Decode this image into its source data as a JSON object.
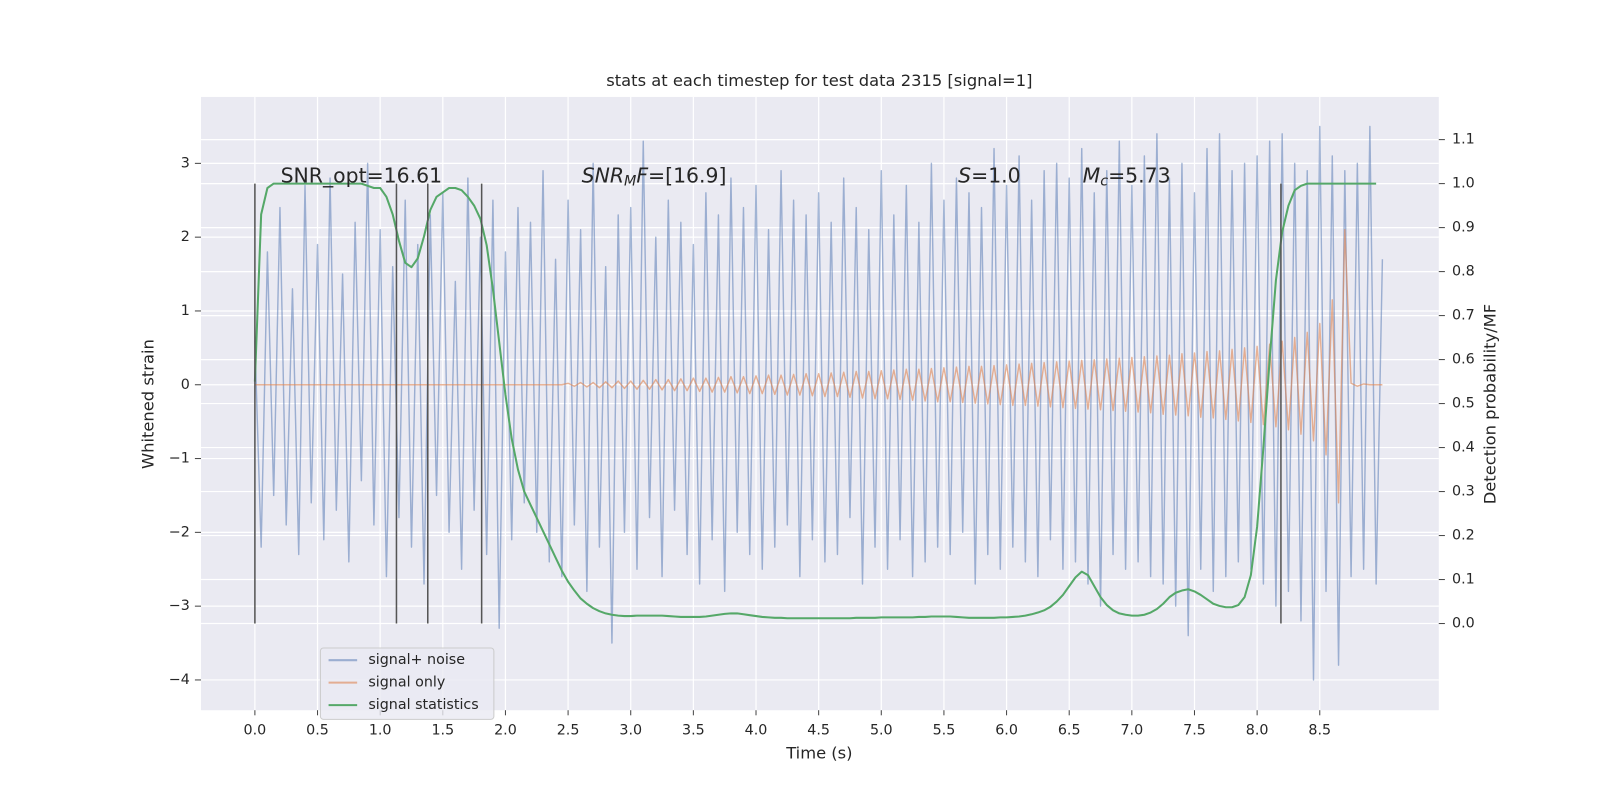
{
  "chart_data": {
    "type": "line",
    "title": "stats at each timestep for test data 2315 [signal=1]",
    "xlabel": "Time (s)",
    "ylabel": "Whitened strain",
    "y2label": "Detection probability/MF",
    "xlim": [
      -0.43,
      9.45
    ],
    "ylim": [
      -4.41,
      3.9
    ],
    "y2lim": [
      -0.197,
      1.197
    ],
    "xticks": [
      {
        "value": 0,
        "label": "0.0"
      },
      0.5,
      {
        "value": 1,
        "label": "1.0"
      },
      1.5,
      {
        "value": 2,
        "label": "2.0"
      },
      2.5,
      {
        "value": 3,
        "label": "3.0"
      },
      3.5,
      {
        "value": 4,
        "label": "4.0"
      },
      4.5,
      {
        "value": 5,
        "label": "5.0"
      },
      5.5,
      {
        "value": 6,
        "label": "6.0"
      },
      6.5,
      {
        "value": 7,
        "label": "7.0"
      },
      7.5,
      {
        "value": 8,
        "label": "8.0"
      },
      8.5
    ],
    "yticks": [
      {
        "value": -4,
        "label": "−4"
      },
      {
        "value": -3,
        "label": "−3"
      },
      {
        "value": -2,
        "label": "−2"
      },
      {
        "value": -1,
        "label": "−1"
      },
      0,
      1,
      2,
      3
    ],
    "y2ticks": [
      {
        "value": 0,
        "label": "0.0"
      },
      0.1,
      0.2,
      0.3,
      0.4,
      0.5,
      0.6,
      0.7,
      0.8,
      0.9,
      {
        "value": 1,
        "label": "1.0"
      },
      1.1
    ],
    "grid": true,
    "legend": "lower left",
    "x": [
      0,
      0.05,
      0.1,
      0.15,
      0.2,
      0.25,
      0.3,
      0.35,
      0.4,
      0.45,
      0.5,
      0.55,
      0.6,
      0.65,
      0.7,
      0.75,
      0.8,
      0.85,
      0.9,
      0.95,
      1,
      1.05,
      1.1,
      1.15,
      1.2,
      1.25,
      1.3,
      1.35,
      1.4,
      1.45,
      1.5,
      1.55,
      1.6,
      1.65,
      1.7,
      1.75,
      1.8,
      1.85,
      1.9,
      1.95,
      2,
      2.05,
      2.1,
      2.15,
      2.2,
      2.25,
      2.3,
      2.35,
      2.4,
      2.45,
      2.5,
      2.55,
      2.6,
      2.65,
      2.7,
      2.75,
      2.8,
      2.85,
      2.9,
      2.95,
      3,
      3.05,
      3.1,
      3.15,
      3.2,
      3.25,
      3.3,
      3.35,
      3.4,
      3.45,
      3.5,
      3.55,
      3.6,
      3.65,
      3.7,
      3.75,
      3.8,
      3.85,
      3.9,
      3.95,
      4,
      4.05,
      4.1,
      4.15,
      4.2,
      4.25,
      4.3,
      4.35,
      4.4,
      4.45,
      4.5,
      4.55,
      4.6,
      4.65,
      4.7,
      4.75,
      4.8,
      4.85,
      4.9,
      4.95,
      5,
      5.05,
      5.1,
      5.15,
      5.2,
      5.25,
      5.3,
      5.35,
      5.4,
      5.45,
      5.5,
      5.55,
      5.6,
      5.65,
      5.7,
      5.75,
      5.8,
      5.85,
      5.9,
      5.95,
      6,
      6.05,
      6.1,
      6.15,
      6.2,
      6.25,
      6.3,
      6.35,
      6.4,
      6.45,
      6.5,
      6.55,
      6.6,
      6.65,
      6.7,
      6.75,
      6.8,
      6.85,
      6.9,
      6.95,
      7,
      7.05,
      7.1,
      7.15,
      7.2,
      7.25,
      7.3,
      7.35,
      7.4,
      7.45,
      7.5,
      7.55,
      7.6,
      7.65,
      7.7,
      7.75,
      7.8,
      7.85,
      7.9,
      7.95,
      8,
      8.05,
      8.1,
      8.15,
      8.2,
      8.25,
      8.3,
      8.35,
      8.4,
      8.45,
      8.5,
      8.55,
      8.6,
      8.65,
      8.7,
      8.75,
      8.8,
      8.85,
      8.9,
      8.95,
      9
    ],
    "series": [
      {
        "name": "signal+ noise",
        "color": "#4c72b0",
        "opacity": 0.5,
        "axis": "y",
        "values": [
          0.6,
          -2.2,
          1.8,
          -1.5,
          2.4,
          -1.9,
          1.3,
          -2.3,
          2.7,
          -1.6,
          1.9,
          -2.1,
          2.8,
          -1.7,
          1.5,
          -2.4,
          2.2,
          -1.3,
          3.0,
          -1.9,
          2.1,
          -2.6,
          1.6,
          -1.8,
          2.5,
          -2.2,
          1.9,
          -2.7,
          2.3,
          -1.5,
          2.6,
          -2.0,
          1.4,
          -2.5,
          2.8,
          -1.7,
          2.0,
          -2.3,
          2.5,
          -3.3,
          1.8,
          -2.1,
          2.4,
          -1.6,
          2.2,
          -2.0,
          2.9,
          -2.4,
          1.7,
          -2.6,
          2.5,
          -1.9,
          2.1,
          -2.8,
          3.0,
          -2.2,
          1.6,
          -3.5,
          2.3,
          -2.0,
          2.4,
          -2.5,
          3.3,
          -1.8,
          2.0,
          -2.6,
          2.5,
          -1.7,
          2.2,
          -2.3,
          1.9,
          -2.7,
          2.6,
          -2.1,
          2.3,
          -2.8,
          2.8,
          -2.0,
          2.4,
          -2.3,
          2.7,
          -2.5,
          2.1,
          -2.2,
          2.9,
          -1.9,
          2.5,
          -2.6,
          2.3,
          -2.1,
          2.6,
          -2.4,
          2.2,
          -2.3,
          2.8,
          -1.8,
          2.4,
          -2.7,
          2.1,
          -2.2,
          2.9,
          -2.5,
          2.3,
          -2.1,
          2.7,
          -2.6,
          2.2,
          -2.4,
          3.0,
          -2.2,
          2.5,
          -2.3,
          2.8,
          -2.0,
          2.6,
          -2.7,
          2.4,
          -2.3,
          3.2,
          -2.5,
          2.7,
          -2.2,
          3.1,
          -2.4,
          2.5,
          -2.6,
          2.9,
          -2.1,
          3.0,
          -2.5,
          2.8,
          -2.4,
          3.2,
          -2.7,
          2.6,
          -3.0,
          2.9,
          -2.3,
          3.3,
          -2.5,
          2.7,
          -2.4,
          3.1,
          -2.6,
          3.4,
          -2.7,
          2.8,
          -3.0,
          3.0,
          -3.4,
          2.6,
          -2.5,
          3.2,
          -2.8,
          3.4,
          -2.6,
          2.9,
          -2.4,
          3.0,
          -2.5,
          3.1,
          -2.7,
          3.3,
          -3.0,
          3.4,
          -2.8,
          3.0,
          -3.2,
          2.9,
          -4.0,
          3.5,
          -2.8,
          3.1,
          -3.8,
          2.9,
          -2.6,
          3.0,
          -2.5,
          3.5,
          -2.7,
          1.7
        ]
      },
      {
        "name": "signal only",
        "color": "#dd8452",
        "opacity": 0.6,
        "axis": "y",
        "values": [
          0,
          0,
          0,
          0,
          0,
          0,
          0,
          0,
          0,
          0,
          0,
          0,
          0,
          0,
          0,
          0,
          0,
          0,
          0,
          0,
          0,
          0,
          0,
          0,
          0,
          0,
          0,
          0,
          0,
          0,
          0,
          0,
          0,
          0,
          0,
          0,
          0,
          0,
          0,
          0,
          0,
          0,
          0,
          0,
          0,
          0,
          0,
          0,
          0,
          0,
          0.02,
          -0.02,
          0.03,
          -0.03,
          0.03,
          -0.04,
          0.04,
          -0.04,
          0.05,
          -0.05,
          0.05,
          -0.06,
          0.06,
          -0.06,
          0.07,
          -0.07,
          0.07,
          -0.08,
          0.08,
          -0.08,
          0.09,
          -0.09,
          0.09,
          -0.1,
          0.1,
          -0.1,
          0.11,
          -0.11,
          0.11,
          -0.12,
          0.12,
          -0.12,
          0.13,
          -0.13,
          0.13,
          -0.14,
          0.14,
          -0.14,
          0.15,
          -0.15,
          0.15,
          -0.16,
          0.16,
          -0.16,
          0.17,
          -0.17,
          0.18,
          -0.18,
          0.18,
          -0.19,
          0.19,
          -0.19,
          0.2,
          -0.2,
          0.21,
          -0.21,
          0.21,
          -0.22,
          0.22,
          -0.23,
          0.23,
          -0.23,
          0.24,
          -0.24,
          0.25,
          -0.25,
          0.25,
          -0.26,
          0.26,
          -0.27,
          0.27,
          -0.28,
          0.28,
          -0.28,
          0.29,
          -0.29,
          0.3,
          -0.3,
          0.31,
          -0.31,
          0.32,
          -0.32,
          0.33,
          -0.33,
          0.34,
          -0.34,
          0.35,
          -0.35,
          0.36,
          -0.36,
          0.37,
          -0.37,
          0.38,
          -0.38,
          0.39,
          -0.4,
          0.4,
          -0.41,
          0.42,
          -0.42,
          0.43,
          -0.44,
          0.45,
          -0.45,
          0.46,
          -0.47,
          0.48,
          -0.49,
          0.5,
          -0.51,
          0.52,
          -0.54,
          0.55,
          -0.57,
          0.59,
          -0.61,
          0.64,
          -0.67,
          0.71,
          -0.76,
          0.83,
          -0.95,
          1.15,
          -1.6,
          2.1,
          0.02,
          -0.02,
          0.01,
          0,
          0,
          0
        ]
      },
      {
        "name": "signal statistics",
        "color": "#55a868",
        "opacity": 1,
        "axis": "y2",
        "values": [
          0.55,
          0.93,
          0.99,
          1.0,
          1.0,
          1.0,
          1.0,
          1.0,
          1.0,
          1.0,
          1.0,
          1.0,
          1.0,
          1.0,
          1.0,
          1.0,
          1.0,
          1.0,
          0.995,
          0.99,
          0.99,
          0.97,
          0.93,
          0.87,
          0.82,
          0.81,
          0.83,
          0.88,
          0.94,
          0.97,
          0.98,
          0.99,
          0.99,
          0.985,
          0.97,
          0.95,
          0.92,
          0.86,
          0.76,
          0.64,
          0.52,
          0.42,
          0.35,
          0.3,
          0.27,
          0.24,
          0.21,
          0.18,
          0.15,
          0.12,
          0.095,
          0.075,
          0.057,
          0.045,
          0.035,
          0.028,
          0.023,
          0.02,
          0.018,
          0.017,
          0.017,
          0.018,
          0.018,
          0.018,
          0.018,
          0.018,
          0.017,
          0.016,
          0.015,
          0.015,
          0.015,
          0.015,
          0.016,
          0.018,
          0.02,
          0.022,
          0.023,
          0.023,
          0.021,
          0.019,
          0.017,
          0.015,
          0.014,
          0.013,
          0.013,
          0.012,
          0.012,
          0.012,
          0.012,
          0.012,
          0.012,
          0.012,
          0.012,
          0.012,
          0.012,
          0.012,
          0.013,
          0.013,
          0.013,
          0.013,
          0.014,
          0.014,
          0.014,
          0.014,
          0.014,
          0.014,
          0.015,
          0.015,
          0.016,
          0.016,
          0.016,
          0.016,
          0.015,
          0.014,
          0.013,
          0.013,
          0.013,
          0.013,
          0.013,
          0.014,
          0.014,
          0.015,
          0.016,
          0.018,
          0.021,
          0.025,
          0.03,
          0.038,
          0.05,
          0.065,
          0.085,
          0.105,
          0.118,
          0.11,
          0.085,
          0.06,
          0.042,
          0.03,
          0.023,
          0.02,
          0.018,
          0.018,
          0.02,
          0.025,
          0.033,
          0.045,
          0.06,
          0.07,
          0.075,
          0.078,
          0.073,
          0.065,
          0.055,
          0.045,
          0.04,
          0.037,
          0.037,
          0.042,
          0.06,
          0.11,
          0.22,
          0.4,
          0.6,
          0.78,
          0.89,
          0.95,
          0.985,
          0.995,
          1.0,
          1.0,
          1.0,
          1.0,
          1.0,
          1.0,
          1.0,
          1.0,
          1.0,
          1.0,
          1.0,
          1.0,
          null
        ]
      }
    ],
    "vlines": {
      "x": [
        0,
        1.13,
        1.38,
        1.81,
        8.19
      ],
      "ymin": 0,
      "ymax": 1,
      "axis": "y2",
      "color": "#555555"
    },
    "annotations": [
      {
        "parts": [
          {
            "text": "SNR_opt=16.61",
            "style": "plain"
          }
        ]
      },
      {
        "parts": [
          {
            "text": "SNR",
            "style": "italic"
          },
          {
            "text": "M",
            "style": "sub"
          },
          {
            "text": "F",
            "style": "italic"
          },
          {
            "text": "=[16.9]",
            "style": "plain"
          }
        ]
      },
      {
        "parts": [
          {
            "text": "S",
            "style": "italic"
          },
          {
            "text": "=1.0",
            "style": "plain"
          }
        ]
      },
      {
        "parts": [
          {
            "text": "M",
            "style": "italic"
          },
          {
            "text": "c",
            "style": "sub"
          },
          {
            "text": "=5.73",
            "style": "plain"
          }
        ]
      }
    ]
  }
}
